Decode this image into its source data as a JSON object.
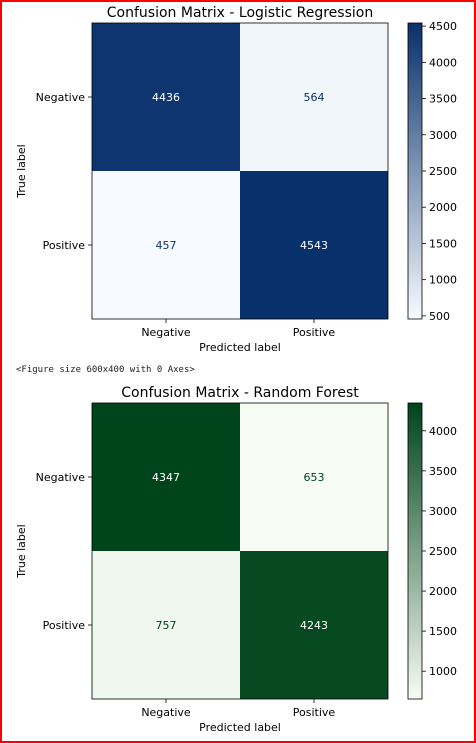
{
  "output_text": "<Figure size 600x400 with 0 Axes>",
  "chart_data": [
    {
      "type": "heatmap",
      "title": "Confusion Matrix - Logistic Regression",
      "xlabel": "Predicted label",
      "ylabel": "True label",
      "x_categories": [
        "Negative",
        "Positive"
      ],
      "y_categories": [
        "Negative",
        "Positive"
      ],
      "values": [
        [
          4436,
          564
        ],
        [
          457,
          4543
        ]
      ],
      "colormap": "Blues",
      "colorbar_ticks": [
        500,
        1000,
        1500,
        2000,
        2500,
        3000,
        3500,
        4000,
        4500
      ],
      "colorbar_range": [
        457,
        4543
      ],
      "colors": {
        "light": "#f7fbff",
        "dark": "#08306b",
        "text_light": "#ffffff",
        "text_dark": "#08306b"
      }
    },
    {
      "type": "heatmap",
      "title": "Confusion Matrix - Random Forest",
      "xlabel": "Predicted label",
      "ylabel": "True label",
      "x_categories": [
        "Negative",
        "Positive"
      ],
      "y_categories": [
        "Negative",
        "Positive"
      ],
      "values": [
        [
          4347,
          653
        ],
        [
          757,
          4243
        ]
      ],
      "colormap": "Greens",
      "colorbar_ticks": [
        1000,
        1500,
        2000,
        2500,
        3000,
        3500,
        4000
      ],
      "colorbar_range": [
        653,
        4347
      ],
      "colors": {
        "light": "#f7fcf5",
        "dark": "#00441b",
        "text_light": "#ffffff",
        "text_dark": "#00441b"
      }
    }
  ]
}
